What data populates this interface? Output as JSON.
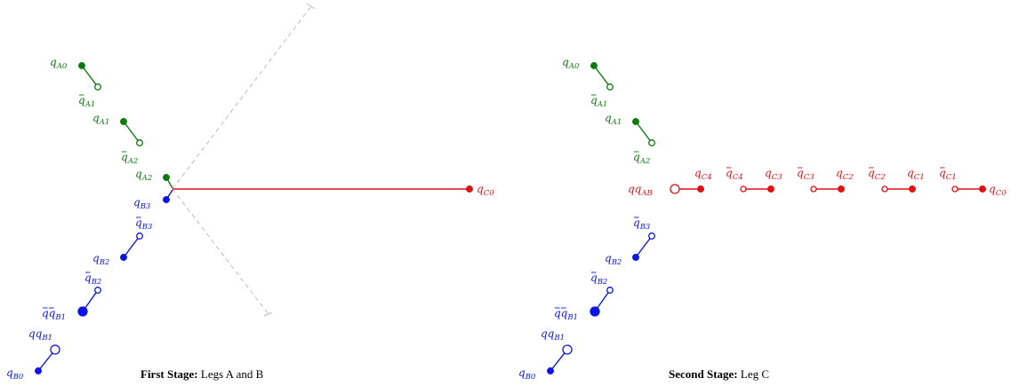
{
  "colors": {
    "green": "#0a7a0a",
    "blue": "#0a14e6",
    "red": "#e01010",
    "dash": "#bbbbbb"
  },
  "panels": [
    {
      "caption": {
        "bold": "First Stage:",
        "text": "Legs A and B"
      },
      "labels": [
        {
          "bar": false,
          "pre": "q",
          "sub": "A0",
          "color": "green"
        },
        {
          "bar": true,
          "pre": "q",
          "sub": "A1",
          "color": "green"
        },
        {
          "bar": false,
          "pre": "q",
          "sub": "A1",
          "color": "green"
        },
        {
          "bar": true,
          "pre": "q",
          "sub": "A2",
          "color": "green"
        },
        {
          "bar": false,
          "pre": "q",
          "sub": "A2",
          "color": "green"
        },
        {
          "bar": false,
          "pre": "q",
          "sub": "B3",
          "color": "blue"
        },
        {
          "bar": true,
          "pre": "q",
          "sub": "B3",
          "color": "blue"
        },
        {
          "bar": false,
          "pre": "q",
          "sub": "B2",
          "color": "blue"
        },
        {
          "bar": true,
          "pre": "q",
          "sub": "B2",
          "color": "blue"
        },
        {
          "bar": true,
          "pre": "qq",
          "sub": "B1",
          "color": "blue"
        },
        {
          "bar": false,
          "pre": "qq",
          "sub": "B1",
          "color": "blue"
        },
        {
          "bar": false,
          "pre": "q",
          "sub": "B0",
          "color": "blue"
        },
        {
          "bar": false,
          "pre": "q",
          "sub": "C0",
          "color": "red"
        }
      ]
    },
    {
      "caption": {
        "bold": "Second Stage:",
        "text": "Leg C"
      },
      "labels": [
        {
          "bar": false,
          "pre": "q",
          "sub": "A0",
          "color": "green"
        },
        {
          "bar": true,
          "pre": "q",
          "sub": "A1",
          "color": "green"
        },
        {
          "bar": false,
          "pre": "q",
          "sub": "A1",
          "color": "green"
        },
        {
          "bar": true,
          "pre": "q",
          "sub": "A2",
          "color": "green"
        },
        {
          "bar": false,
          "pre": "qq",
          "sub": "AB",
          "color": "red"
        },
        {
          "bar": false,
          "pre": "q",
          "sub": "C4",
          "color": "red"
        },
        {
          "bar": true,
          "pre": "q",
          "sub": "C4",
          "color": "red"
        },
        {
          "bar": false,
          "pre": "q",
          "sub": "C3",
          "color": "red"
        },
        {
          "bar": true,
          "pre": "q",
          "sub": "C3",
          "color": "red"
        },
        {
          "bar": false,
          "pre": "q",
          "sub": "C2",
          "color": "red"
        },
        {
          "bar": true,
          "pre": "q",
          "sub": "C2",
          "color": "red"
        },
        {
          "bar": false,
          "pre": "q",
          "sub": "C1",
          "color": "red"
        },
        {
          "bar": true,
          "pre": "q",
          "sub": "C1",
          "color": "red"
        },
        {
          "bar": false,
          "pre": "q",
          "sub": "C0",
          "color": "red"
        },
        {
          "bar": true,
          "pre": "q",
          "sub": "B3",
          "color": "blue"
        },
        {
          "bar": false,
          "pre": "q",
          "sub": "B2",
          "color": "blue"
        },
        {
          "bar": true,
          "pre": "q",
          "sub": "B2",
          "color": "blue"
        },
        {
          "bar": true,
          "pre": "qq",
          "sub": "B1",
          "color": "blue"
        },
        {
          "bar": false,
          "pre": "qq",
          "sub": "B1",
          "color": "blue"
        },
        {
          "bar": false,
          "pre": "q",
          "sub": "B0",
          "color": "blue"
        }
      ]
    }
  ]
}
